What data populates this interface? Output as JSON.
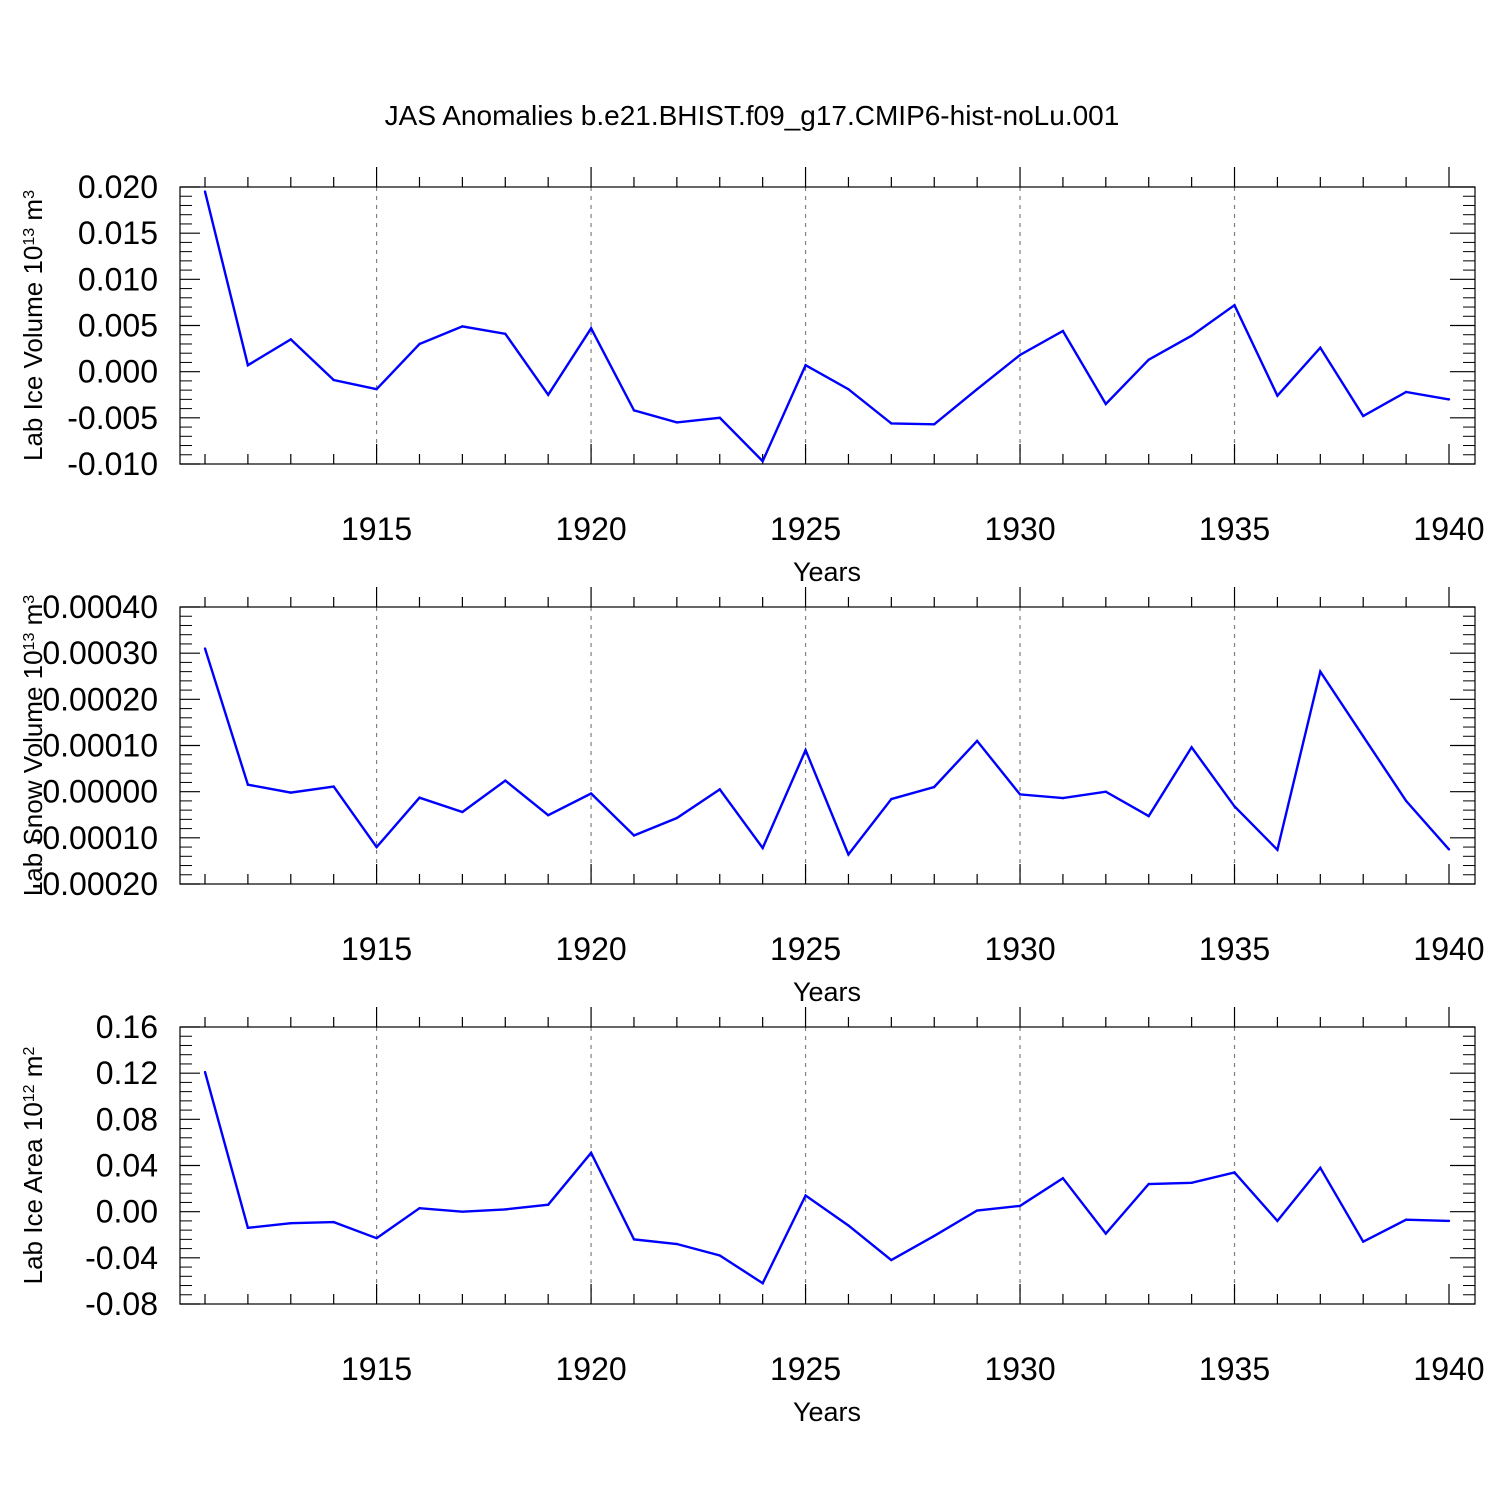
{
  "figure": {
    "title": "JAS Anomalies b.e21.BHIST.f09_g17.CMIP6-hist-noLu.001"
  },
  "colors": {
    "line": "#0000ff",
    "axis": "#000000",
    "grid": "#808080",
    "background": "#ffffff"
  },
  "chart_data": [
    {
      "type": "line",
      "title": "",
      "xlabel": "Years",
      "ylabel": "Lab Ice Volume 10",
      "ylabel_exp": "13",
      "ylabel_unit": " m",
      "ylabel_unit_exp": "3",
      "xlim": [
        1911,
        1940
      ],
      "ylim": [
        -0.01,
        0.02
      ],
      "yticks": [
        -0.01,
        -0.005,
        0.0,
        0.005,
        0.01,
        0.015,
        0.02
      ],
      "ytick_labels": [
        "-0.010",
        "-0.005",
        "0.000",
        "0.005",
        "0.010",
        "0.015",
        "0.020"
      ],
      "xticks": [
        1915,
        1920,
        1925,
        1930,
        1935,
        1940
      ],
      "xtick_labels": [
        "1915",
        "1920",
        "1925",
        "1930",
        "1935",
        "1940"
      ],
      "grid": "vertical dashed at major x ticks",
      "series": [
        {
          "x": [
            1911,
            1912,
            1913,
            1914,
            1915,
            1916,
            1917,
            1918,
            1919,
            1920,
            1921,
            1922,
            1923,
            1924,
            1925,
            1926,
            1927,
            1928,
            1929,
            1930,
            1931,
            1932,
            1933,
            1934,
            1935,
            1936,
            1937,
            1938,
            1939,
            1940
          ],
          "y": [
            0.0195,
            0.0007,
            0.0035,
            -0.0009,
            -0.0019,
            0.003,
            0.0049,
            0.0041,
            -0.0025,
            0.0047,
            -0.0042,
            -0.0055,
            -0.005,
            -0.0097,
            0.0007,
            -0.0019,
            -0.0056,
            -0.0057,
            -0.0019,
            0.0018,
            0.0044,
            -0.0035,
            0.0013,
            0.0039,
            0.0072,
            -0.0026,
            0.0026,
            -0.0048,
            -0.0022,
            -0.003
          ]
        }
      ]
    },
    {
      "type": "line",
      "title": "",
      "xlabel": "Years",
      "ylabel": "Lab Snow Volume 10",
      "ylabel_exp": "13",
      "ylabel_unit": " m",
      "ylabel_unit_exp": "3",
      "xlim": [
        1911,
        1940
      ],
      "ylim": [
        -0.0002,
        0.0004
      ],
      "yticks": [
        -0.0002,
        -0.0001,
        0.0,
        0.0001,
        0.0002,
        0.0003,
        0.0004
      ],
      "ytick_labels": [
        "-0.00020",
        "-0.00010",
        "0.00000",
        "0.00010",
        "0.00020",
        "0.00030",
        "0.00040"
      ],
      "xticks": [
        1915,
        1920,
        1925,
        1930,
        1935,
        1940
      ],
      "xtick_labels": [
        "1915",
        "1920",
        "1925",
        "1930",
        "1935",
        "1940"
      ],
      "grid": "vertical dashed at major x ticks",
      "series": [
        {
          "x": [
            1911,
            1912,
            1913,
            1914,
            1915,
            1916,
            1917,
            1918,
            1919,
            1920,
            1921,
            1922,
            1923,
            1924,
            1925,
            1926,
            1927,
            1928,
            1929,
            1930,
            1931,
            1932,
            1933,
            1934,
            1935,
            1936,
            1937,
            1938,
            1939,
            1940
          ],
          "y": [
            0.00031,
            1.5e-05,
            -2e-06,
            1.1e-05,
            -0.00012,
            -1.3e-05,
            -4.4e-05,
            2.4e-05,
            -5.1e-05,
            -4e-06,
            -9.5e-05,
            -5.7e-05,
            5e-06,
            -0.000122,
            9e-05,
            -0.000136,
            -1.6e-05,
            1e-05,
            0.00011,
            -6e-06,
            -1.4e-05,
            0.0,
            -5.3e-05,
            9.6e-05,
            -3.2e-05,
            -0.000126,
            0.00026,
            0.00012,
            -2e-05,
            -0.000125
          ]
        }
      ]
    },
    {
      "type": "line",
      "title": "",
      "xlabel": "Years",
      "ylabel": "Lab Ice Area 10",
      "ylabel_exp": "12",
      "ylabel_unit": " m",
      "ylabel_unit_exp": "2",
      "xlim": [
        1911,
        1940
      ],
      "ylim": [
        -0.08,
        0.16
      ],
      "yticks": [
        -0.08,
        -0.04,
        0.0,
        0.04,
        0.08,
        0.12,
        0.16
      ],
      "ytick_labels": [
        "-0.08",
        "-0.04",
        "0.00",
        "0.04",
        "0.08",
        "0.12",
        "0.16"
      ],
      "xticks": [
        1915,
        1920,
        1925,
        1930,
        1935,
        1940
      ],
      "xtick_labels": [
        "1915",
        "1920",
        "1925",
        "1930",
        "1935",
        "1940"
      ],
      "grid": "vertical dashed at major x ticks",
      "series": [
        {
          "x": [
            1911,
            1912,
            1913,
            1914,
            1915,
            1916,
            1917,
            1918,
            1919,
            1920,
            1921,
            1922,
            1923,
            1924,
            1925,
            1926,
            1927,
            1928,
            1929,
            1930,
            1931,
            1932,
            1933,
            1934,
            1935,
            1936,
            1937,
            1938,
            1939,
            1940
          ],
          "y": [
            0.121,
            -0.014,
            -0.01,
            -0.009,
            -0.023,
            0.003,
            0.0,
            0.002,
            0.006,
            0.051,
            -0.024,
            -0.028,
            -0.038,
            -0.062,
            0.014,
            -0.012,
            -0.042,
            -0.021,
            0.001,
            0.005,
            0.029,
            -0.019,
            0.024,
            0.025,
            0.034,
            -0.008,
            0.038,
            -0.026,
            -0.007,
            -0.008
          ]
        }
      ]
    }
  ]
}
